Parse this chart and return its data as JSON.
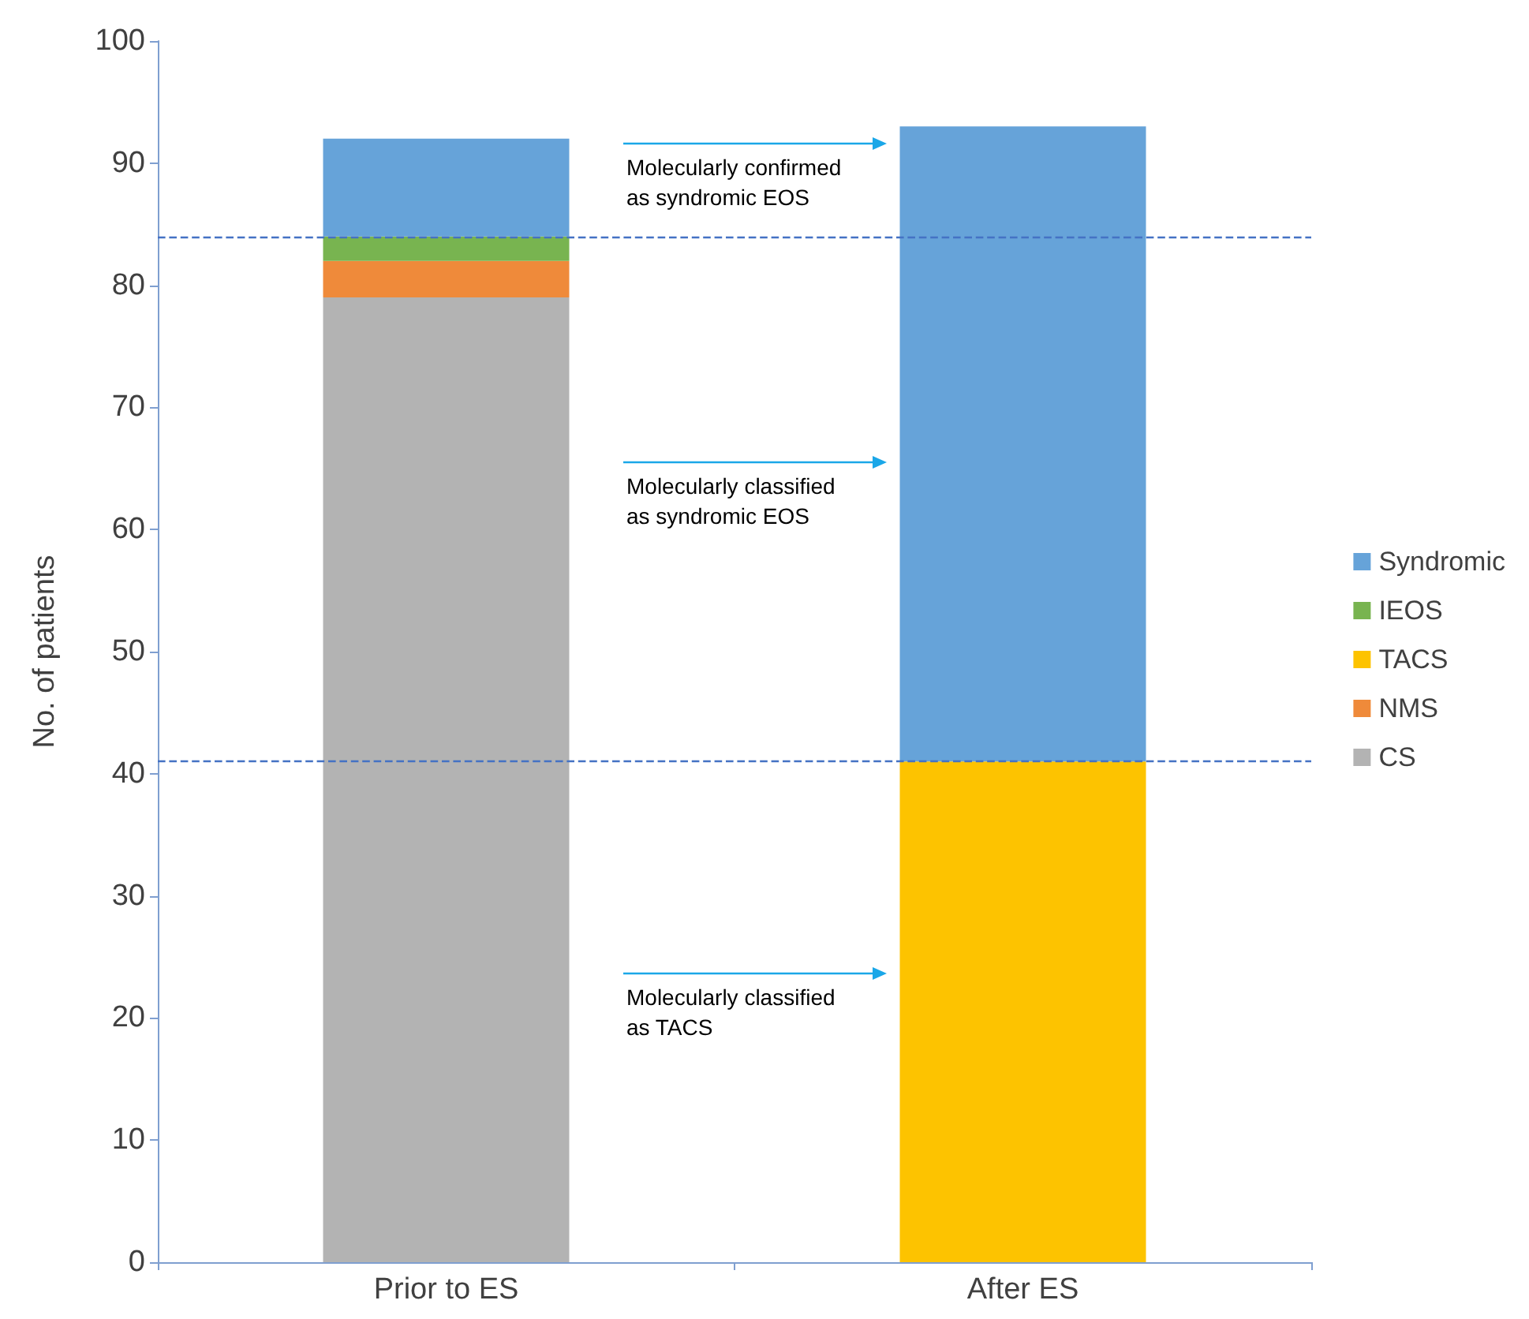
{
  "chart_data": {
    "type": "bar",
    "stacked": true,
    "ylabel": "No. of patients",
    "categories": [
      "Prior to ES",
      "After ES"
    ],
    "series": [
      {
        "name": "CS",
        "color": "#b3b3b3",
        "values": [
          79,
          null
        ]
      },
      {
        "name": "NMS",
        "color": "#ef8a3a",
        "values": [
          3,
          null
        ]
      },
      {
        "name": "TACS",
        "color": "#fdc300",
        "values": [
          null,
          41
        ]
      },
      {
        "name": "IEOS",
        "color": "#78b450",
        "values": [
          2,
          null
        ]
      },
      {
        "name": "Syndromic",
        "color": "#66a3d9",
        "values": [
          8,
          52
        ]
      }
    ],
    "ylim": [
      0,
      100
    ],
    "yticks": [
      0,
      10,
      20,
      30,
      40,
      50,
      60,
      70,
      80,
      90,
      100
    ],
    "ref_lines": [
      {
        "axis": "y",
        "value": 84,
        "color": "#4472c4",
        "line_style": "dashed"
      },
      {
        "axis": "y",
        "value": 41,
        "color": "#4472c4",
        "line_style": "dashed"
      }
    ],
    "annotations": [
      "Molecularly confirmed\nas syndromic EOS",
      "Molecularly classified\nas syndromic EOS",
      "Molecularly classified\nas TACS"
    ],
    "legend": "right",
    "grid": false
  }
}
